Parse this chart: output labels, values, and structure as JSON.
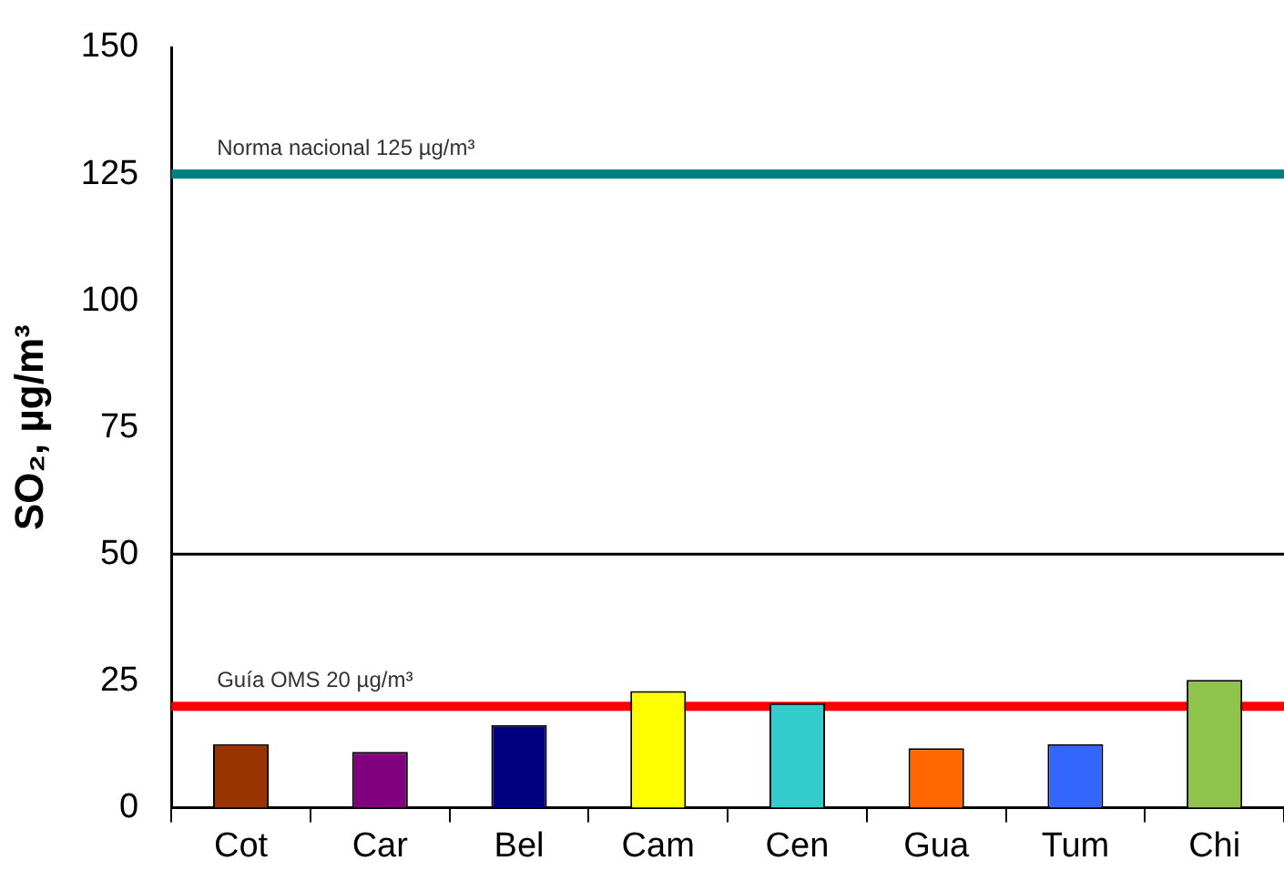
{
  "chart_data": {
    "type": "bar",
    "ylabel": "SO₂, µg/m³",
    "categories": [
      "Cot",
      "Car",
      "Bel",
      "Cam",
      "Cen",
      "Gua",
      "Tum",
      "Chi"
    ],
    "values": [
      12.5,
      11,
      16.3,
      23,
      20.6,
      11.7,
      12.5,
      25.2
    ],
    "colors": [
      "#993300",
      "#800080",
      "#000080",
      "#ffff00",
      "#33cccc",
      "#ff6600",
      "#3366ff",
      "#8fc34b"
    ],
    "ylim": [
      0,
      150
    ],
    "yticks": [
      0,
      25,
      50,
      75,
      100,
      125,
      150
    ],
    "ref_lines": [
      {
        "axis": "y",
        "value": 125,
        "label": "Norma nacional 125 µg/m³",
        "color": "#008080"
      },
      {
        "axis": "y",
        "value": 50,
        "label": null,
        "color": "#000000"
      },
      {
        "axis": "y",
        "value": 20,
        "label": "Guía OMS 20 µg/m³",
        "color": "#ff0000"
      }
    ],
    "legend": false
  }
}
